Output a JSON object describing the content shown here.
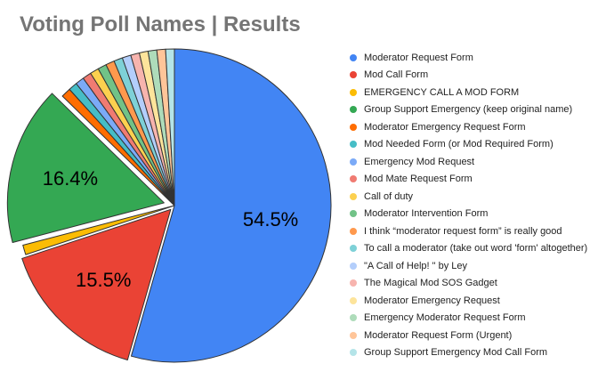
{
  "chart_data": {
    "type": "pie",
    "title": "Voting Poll Names | Results",
    "legend_position": "right",
    "slices": [
      {
        "name": "Moderator Request Form",
        "value": 54.5,
        "label": "54.5%",
        "color": "#4285f4"
      },
      {
        "name": "Mod Call Form",
        "value": 15.5,
        "label": "15.5%",
        "color": "#ea4335"
      },
      {
        "name": "EMERGENCY CALL A MOD FORM",
        "value": 1.0,
        "color": "#fbbc04"
      },
      {
        "name": "Group Support Emergency (keep original name)",
        "value": 16.4,
        "label": "16.4%",
        "color": "#34a853"
      },
      {
        "name": "Moderator Emergency Request Form",
        "value": 1.0,
        "color": "#ff6d01"
      },
      {
        "name": "Mod Needed Form (or Mod Required Form)",
        "value": 0.9,
        "color": "#46bdc6"
      },
      {
        "name": "Emergency Mod Request",
        "value": 0.9,
        "color": "#7baaf7"
      },
      {
        "name": "Mod Mate Request Form",
        "value": 0.9,
        "color": "#f07b72"
      },
      {
        "name": "Call of duty",
        "value": 0.9,
        "color": "#fcd04f"
      },
      {
        "name": "Moderator Intervention Form",
        "value": 0.9,
        "color": "#71c287"
      },
      {
        "name": "I think “moderator request form” is really good",
        "value": 0.9,
        "color": "#ff994d"
      },
      {
        "name": "To call a moderator (take out word 'form' altogether)",
        "value": 0.9,
        "color": "#7ed1d7"
      },
      {
        "name": "\"A Call of Help! \" by Ley",
        "value": 0.9,
        "color": "#b3cefb"
      },
      {
        "name": "The Magical Mod SOS Gadget",
        "value": 0.9,
        "color": "#f7b4ae"
      },
      {
        "name": "Moderator Emergency Request",
        "value": 0.9,
        "color": "#fde49b"
      },
      {
        "name": "Emergency Moderator Request Form",
        "value": 0.9,
        "color": "#aedcba"
      },
      {
        "name": "Moderator Request Form (Urgent)",
        "value": 0.9,
        "color": "#ffc599"
      },
      {
        "name": "Group Support Emergency Mod Call Form",
        "value": 0.9,
        "color": "#b4e4e8"
      }
    ]
  }
}
